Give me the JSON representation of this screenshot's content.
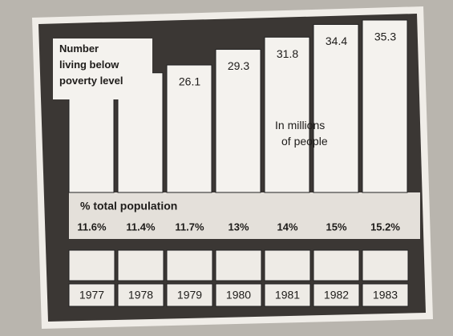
{
  "chart_data": {
    "type": "bar",
    "title": "Number living below poverty level",
    "subtitle": "In millions of people",
    "categories": [
      "1977",
      "1978",
      "1979",
      "1980",
      "1981",
      "1982",
      "1983"
    ],
    "values": [
      24.7,
      24.5,
      26.1,
      29.3,
      31.8,
      34.4,
      35.3
    ],
    "color": "#f4f2ee",
    "percent": {
      "label": "% total population",
      "values": [
        11.6,
        11.4,
        11.7,
        13,
        14,
        15,
        15.2
      ],
      "value_labels": [
        "11.6%",
        "11.4%",
        "11.7%",
        "13%",
        "14%",
        "15%",
        "15.2%"
      ]
    }
  }
}
